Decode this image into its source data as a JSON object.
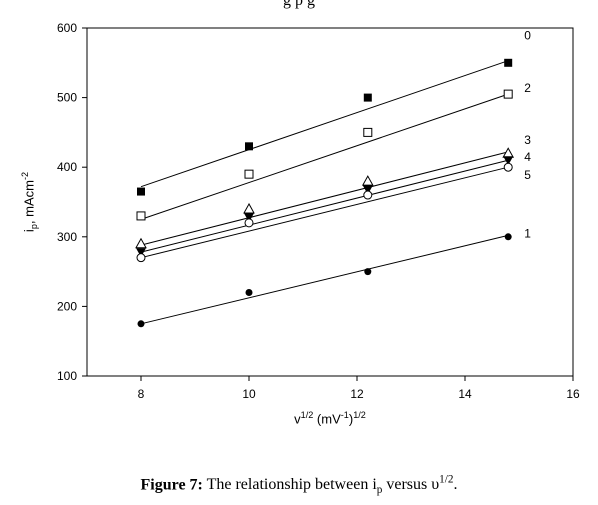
{
  "top_fragment": "g             p          g",
  "chart_data": {
    "type": "scatter",
    "xlabel_html": "v<sup>1/2</sup> (mV<sup>-1</sup>)<sup>1/2</sup>",
    "ylabel_html": "i<sub>p</sub>, mAcm<sup>-2</sup>",
    "xlim": [
      7,
      16
    ],
    "ylim": [
      100,
      600
    ],
    "x_ticks": [
      8,
      10,
      12,
      14,
      16
    ],
    "y_ticks": [
      100,
      200,
      300,
      400,
      500,
      600
    ],
    "grid": false,
    "x": [
      8,
      10,
      12.2,
      14.8
    ],
    "series": [
      {
        "name": "0",
        "marker": "filled-square",
        "values": [
          365,
          430,
          500,
          550
        ],
        "fit": [
          372,
          428,
          490,
          553
        ]
      },
      {
        "name": "2",
        "marker": "open-square",
        "values": [
          330,
          390,
          450,
          505
        ],
        "fit": [
          325,
          375,
          432,
          505
        ]
      },
      {
        "name": "3",
        "marker": "open-triangle",
        "values": [
          290,
          340,
          380,
          420
        ],
        "fit": [
          288,
          325,
          375,
          422
        ]
      },
      {
        "name": "4",
        "marker": "filled-triangle-down",
        "values": [
          278,
          328,
          368,
          410
        ],
        "fit": [
          278,
          315,
          362,
          410
        ]
      },
      {
        "name": "5",
        "marker": "open-circle",
        "values": [
          270,
          320,
          360,
          400
        ],
        "fit": [
          270,
          305,
          350,
          400
        ]
      },
      {
        "name": "1",
        "marker": "filled-circle",
        "values": [
          175,
          220,
          250,
          300
        ],
        "fit": [
          175,
          212,
          252,
          302
        ]
      }
    ]
  },
  "caption": {
    "label": "Figure 7:",
    "text_html": "The relationship between i<sub>p</sub> versus υ<sup>1/2</sup>."
  }
}
